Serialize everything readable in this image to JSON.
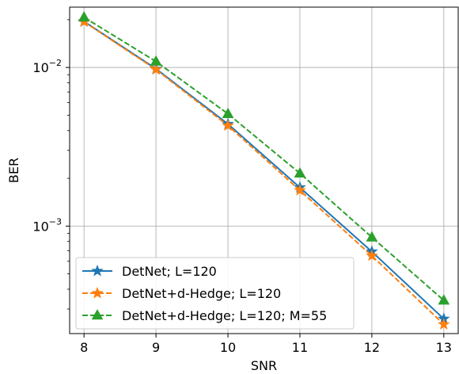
{
  "chart_data": {
    "type": "line",
    "title": "",
    "xlabel": "SNR",
    "ylabel": "BER",
    "x": [
      8,
      9,
      10,
      11,
      12,
      13
    ],
    "xlim": [
      7.8,
      13.2
    ],
    "ylim": [
      0.00021,
      0.024
    ],
    "yscale": "log",
    "grid": true,
    "legend_position": "bottom-left",
    "x_ticks": [
      {
        "value": 8,
        "label": "8"
      },
      {
        "value": 9,
        "label": "9"
      },
      {
        "value": 10,
        "label": "10"
      },
      {
        "value": 11,
        "label": "11"
      },
      {
        "value": 12,
        "label": "12"
      },
      {
        "value": 13,
        "label": "13"
      }
    ],
    "y_ticks": [
      {
        "value": 0.01,
        "base": "10",
        "exp": "−2"
      },
      {
        "value": 0.001,
        "base": "10",
        "exp": "−3"
      }
    ],
    "series": [
      {
        "name": "DetNet; L=120",
        "color": "#1f77b4",
        "dash": "solid",
        "marker": "star",
        "values": [
          0.0195,
          0.0098,
          0.0044,
          0.00175,
          0.00069,
          0.00026
        ]
      },
      {
        "name": "DetNet+d-Hedge; L=120",
        "color": "#ff7f0e",
        "dash": "dashed",
        "marker": "star",
        "values": [
          0.0194,
          0.0097,
          0.0043,
          0.00168,
          0.00065,
          0.00024
        ]
      },
      {
        "name": "DetNet+d-Hedge; L=120; M=55",
        "color": "#2ca02c",
        "dash": "dashed",
        "marker": "triangle",
        "values": [
          0.0207,
          0.0109,
          0.0051,
          0.00215,
          0.00085,
          0.00034
        ]
      }
    ]
  }
}
